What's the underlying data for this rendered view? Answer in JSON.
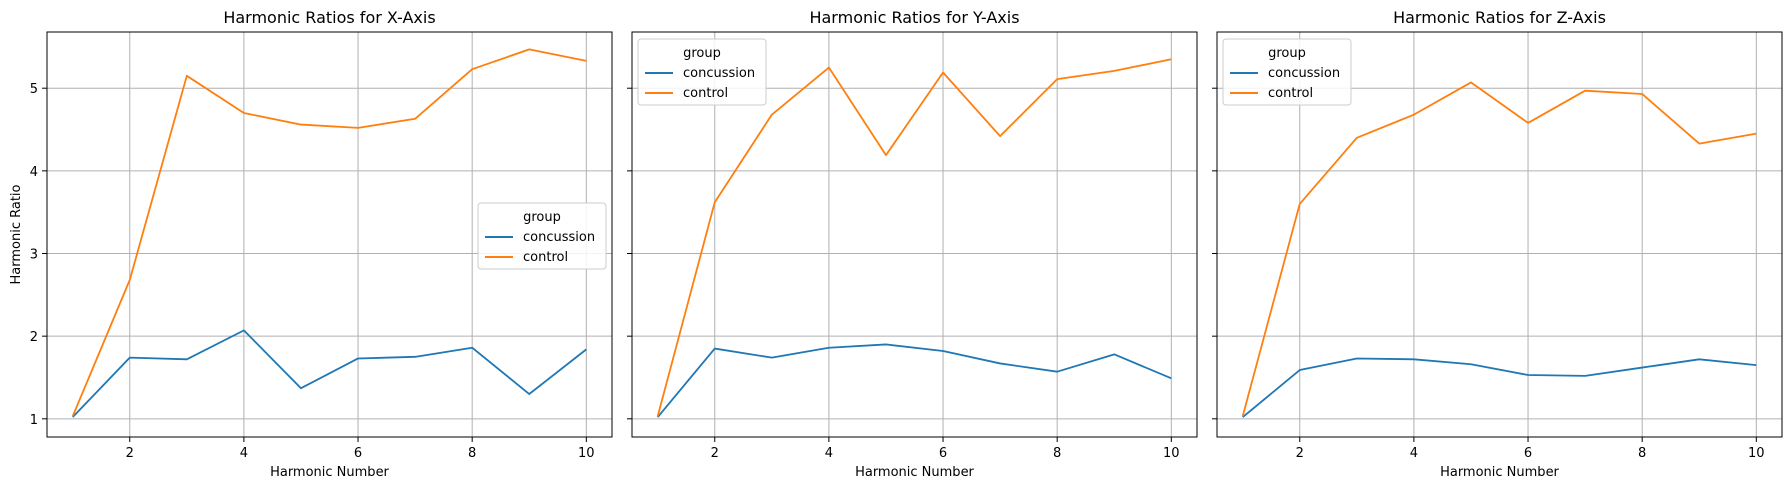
{
  "shared_ylabel": "Harmonic Ratio",
  "colors": {
    "concussion": "#1f77b4",
    "control": "#ff7f0e",
    "grid": "#b0b0b0",
    "axis": "#000000"
  },
  "chart_data": [
    {
      "type": "line",
      "title": "Harmonic Ratios for X-Axis",
      "xlabel": "Harmonic Number",
      "ylabel": "Harmonic Ratio",
      "xlim": [
        0.55,
        10.45
      ],
      "ylim": [
        0.78,
        5.68
      ],
      "xticks": [
        2,
        4,
        6,
        8,
        10
      ],
      "yticks": [
        1,
        2,
        3,
        4,
        5
      ],
      "grid": true,
      "legend": {
        "title": "group",
        "placement": "center-right"
      },
      "x": [
        1,
        2,
        3,
        4,
        5,
        6,
        7,
        8,
        9,
        10
      ],
      "series": [
        {
          "name": "concussion",
          "color": "#1f77b4",
          "values": [
            1.02,
            1.74,
            1.72,
            2.07,
            1.37,
            1.73,
            1.75,
            1.86,
            1.3,
            1.84
          ]
        },
        {
          "name": "control",
          "color": "#ff7f0e",
          "values": [
            1.03,
            2.68,
            5.15,
            4.7,
            4.56,
            4.52,
            4.63,
            5.23,
            5.47,
            5.33
          ]
        }
      ]
    },
    {
      "type": "line",
      "title": "Harmonic Ratios for Y-Axis",
      "xlabel": "Harmonic Number",
      "ylabel": "",
      "xlim": [
        0.55,
        10.45
      ],
      "ylim": [
        0.78,
        5.68
      ],
      "xticks": [
        2,
        4,
        6,
        8,
        10
      ],
      "yticks": [
        1,
        2,
        3,
        4,
        5
      ],
      "grid": true,
      "legend": {
        "title": "group",
        "placement": "top-left"
      },
      "x": [
        1,
        2,
        3,
        4,
        5,
        6,
        7,
        8,
        9,
        10
      ],
      "series": [
        {
          "name": "concussion",
          "color": "#1f77b4",
          "values": [
            1.02,
            1.85,
            1.74,
            1.86,
            1.9,
            1.82,
            1.67,
            1.57,
            1.78,
            1.49
          ]
        },
        {
          "name": "control",
          "color": "#ff7f0e",
          "values": [
            1.03,
            3.62,
            4.68,
            5.25,
            4.19,
            5.19,
            4.42,
            5.11,
            5.21,
            5.35
          ]
        }
      ]
    },
    {
      "type": "line",
      "title": "Harmonic Ratios for Z-Axis",
      "xlabel": "Harmonic Number",
      "ylabel": "",
      "xlim": [
        0.55,
        10.45
      ],
      "ylim": [
        0.78,
        5.68
      ],
      "xticks": [
        2,
        4,
        6,
        8,
        10
      ],
      "yticks": [
        1,
        2,
        3,
        4,
        5
      ],
      "grid": true,
      "legend": {
        "title": "group",
        "placement": "top-left"
      },
      "x": [
        1,
        2,
        3,
        4,
        5,
        6,
        7,
        8,
        9,
        10
      ],
      "series": [
        {
          "name": "concussion",
          "color": "#1f77b4",
          "values": [
            1.02,
            1.59,
            1.73,
            1.72,
            1.66,
            1.53,
            1.52,
            1.62,
            1.72,
            1.65
          ]
        },
        {
          "name": "control",
          "color": "#ff7f0e",
          "values": [
            1.03,
            3.6,
            4.4,
            4.68,
            5.07,
            4.58,
            4.97,
            4.93,
            4.33,
            4.45
          ]
        }
      ]
    }
  ]
}
